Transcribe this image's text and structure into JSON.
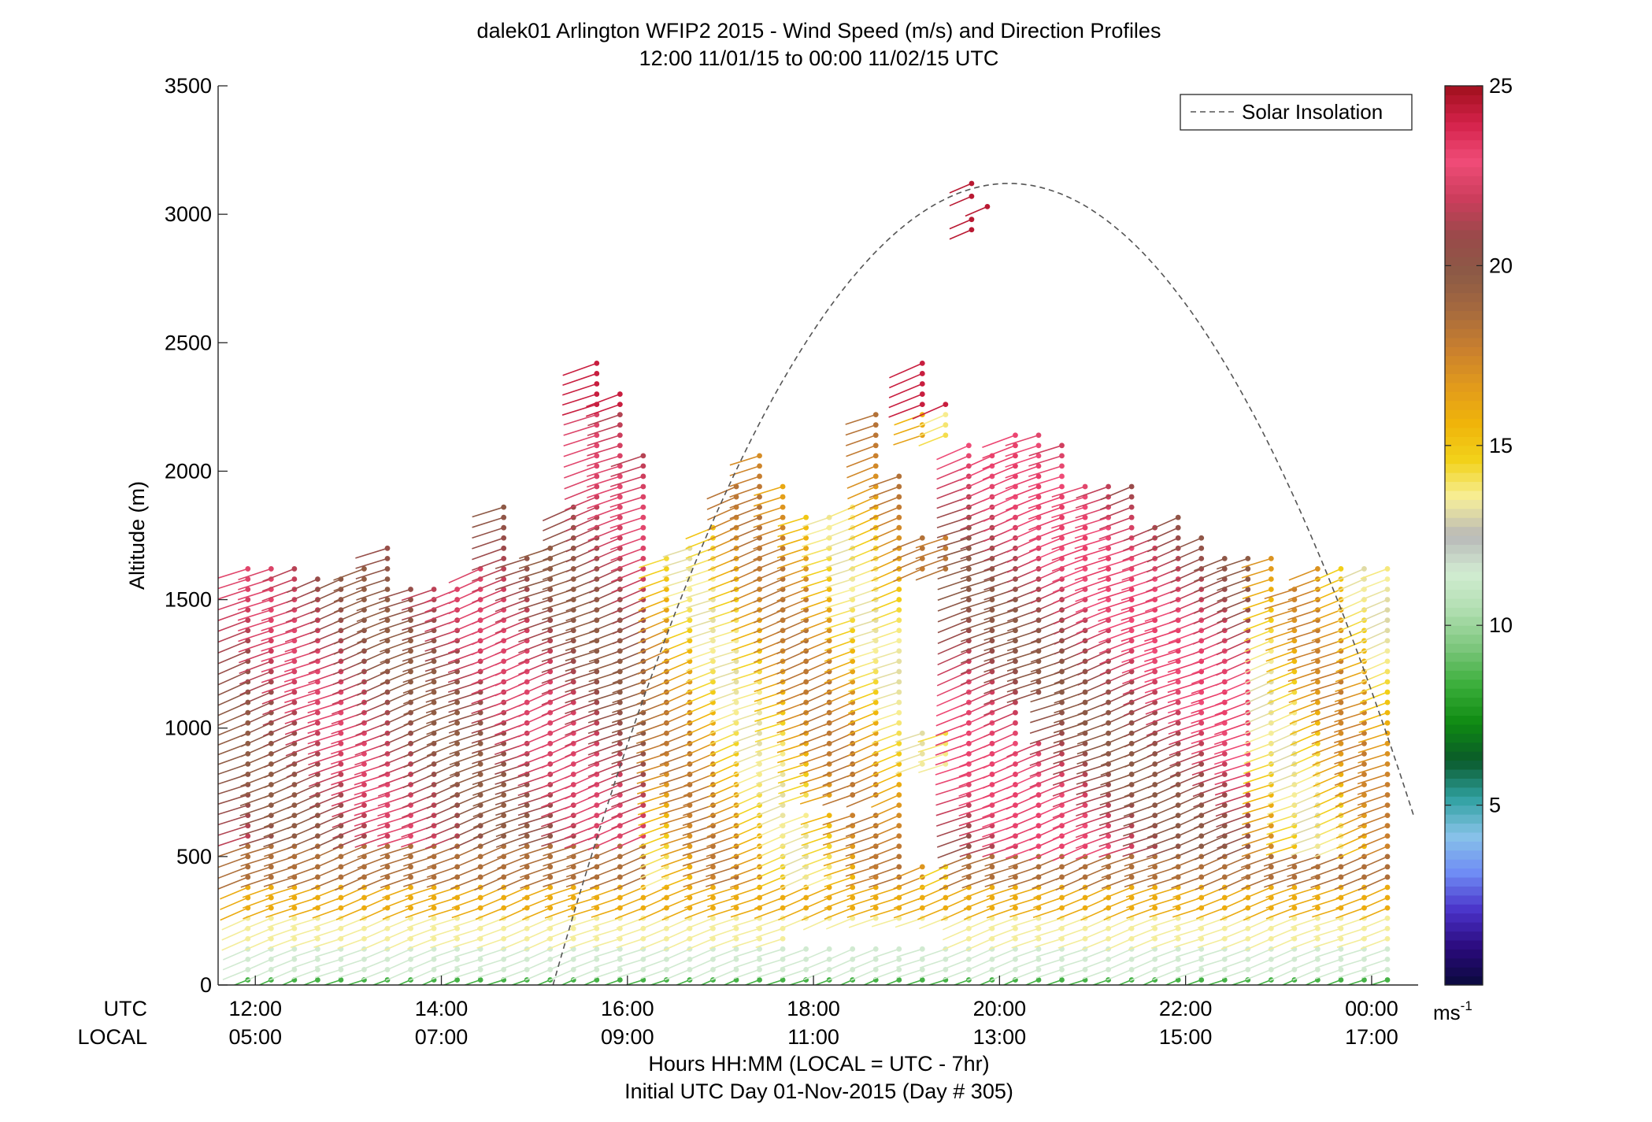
{
  "chart_data": {
    "type": "scatter",
    "subtype": "wind-profile-vectors",
    "title_line1": "dalek01 Arlington WFIP2 2015 - Wind Speed (m/s) and Direction Profiles",
    "title_line2": "12:00 11/01/15 to 00:00 11/02/15  UTC",
    "ylabel": "Altitude (m)",
    "xlabel_line1": "Hours HH:MM  (LOCAL = UTC - 7hr)",
    "xlabel_line2": "Initial UTC Day 01-Nov-2015 (Day # 305)",
    "x_row_labels": [
      "UTC",
      "LOCAL"
    ],
    "x_ticks_hours": [
      12,
      14,
      16,
      18,
      20,
      22,
      24
    ],
    "x_ticks_utc": [
      "12:00",
      "14:00",
      "16:00",
      "18:00",
      "20:00",
      "22:00",
      "00:00"
    ],
    "x_ticks_local": [
      "05:00",
      "07:00",
      "09:00",
      "11:00",
      "13:00",
      "15:00",
      "17:00"
    ],
    "xlim_hours": [
      11.6,
      24.5
    ],
    "ylim": [
      0,
      3500
    ],
    "y_ticks": [
      0,
      500,
      1000,
      1500,
      2000,
      2500,
      3000,
      3500
    ],
    "y_tick_labels": [
      "0",
      "500",
      "1000",
      "1500",
      "2000",
      "2500",
      "3000",
      "3500"
    ],
    "legend": {
      "label": "Solar Insolation",
      "placement": "top-right"
    },
    "colorbar": {
      "range": [
        0,
        25
      ],
      "ticks": [
        5,
        10,
        15,
        20,
        25
      ],
      "tick_labels": [
        "5",
        "10",
        "15",
        "20",
        "25"
      ],
      "unit_base": "ms",
      "unit_exp": "-1",
      "colors": [
        "#0a0a3c",
        "#2a0a7c",
        "#4a32c8",
        "#6f8cf5",
        "#88c3e8",
        "#2fa0a0",
        "#0a5a2a",
        "#0f8a12",
        "#3aae3a",
        "#7cc67c",
        "#b0deb0",
        "#d2ecd2",
        "#b8b8b8",
        "#f7ef9a",
        "#f2d21a",
        "#f0b40a",
        "#e19a1c",
        "#c97f2e",
        "#a66a3e",
        "#8c5a46",
        "#9a4a4a",
        "#cc3d5c",
        "#f04c78",
        "#d4224a",
        "#a0101c"
      ]
    },
    "solar_insolation_curve": {
      "peak_hour": 20.1,
      "peak_altitude": 3120,
      "half_width_hours": 4.9,
      "style": "dashed"
    },
    "profile_times_hours": [
      11.92,
      12.17,
      12.42,
      12.67,
      12.92,
      13.17,
      13.42,
      13.67,
      13.92,
      14.17,
      14.42,
      14.67,
      14.92,
      15.17,
      15.42,
      15.67,
      15.92,
      16.17,
      16.42,
      16.67,
      16.92,
      17.17,
      17.42,
      17.67,
      17.92,
      18.17,
      18.42,
      18.67,
      18.92,
      19.17,
      19.42,
      19.67,
      19.92,
      20.17,
      20.42,
      20.67,
      20.92,
      21.17,
      21.42,
      21.67,
      21.92,
      22.17,
      22.42,
      22.67,
      22.92,
      23.17,
      23.42,
      23.67,
      23.92,
      24.17
    ],
    "profile_tops_m": [
      1620,
      1620,
      1620,
      1600,
      1600,
      1620,
      1700,
      1570,
      1570,
      1560,
      1650,
      1870,
      1660,
      1730,
      1870,
      2440,
      2310,
      2090,
      1660,
      1700,
      1790,
      1950,
      2080,
      1960,
      1840,
      1840,
      1890,
      2230,
      2000,
      2450,
      2270,
      2100,
      2060,
      2140,
      2140,
      2100,
      1960,
      1960,
      1960,
      1800,
      1840,
      1740,
      1690,
      1660,
      1660,
      1570,
      1620,
      1620,
      1620,
      1620
    ],
    "gaps": [
      {
        "t0": 17.8,
        "t1": 19.55,
        "h0": 150,
        "h1": 230
      },
      {
        "t0": 17.8,
        "t1": 18.7,
        "h0": 690,
        "h1": 730
      },
      {
        "t0": 19.05,
        "t1": 19.55,
        "h0": 480,
        "h1": 830
      },
      {
        "t0": 19.05,
        "t1": 19.5,
        "h0": 1000,
        "h1": 1600
      },
      {
        "t0": 19.05,
        "t1": 19.5,
        "h0": 1760,
        "h1": 2100
      },
      {
        "t0": 20.35,
        "t1": 20.65,
        "h0": 960,
        "h1": 1130
      }
    ],
    "range_gate_m": 40,
    "vector_direction": "westerly to west-southwesterly (sticks point to lower-left)"
  }
}
